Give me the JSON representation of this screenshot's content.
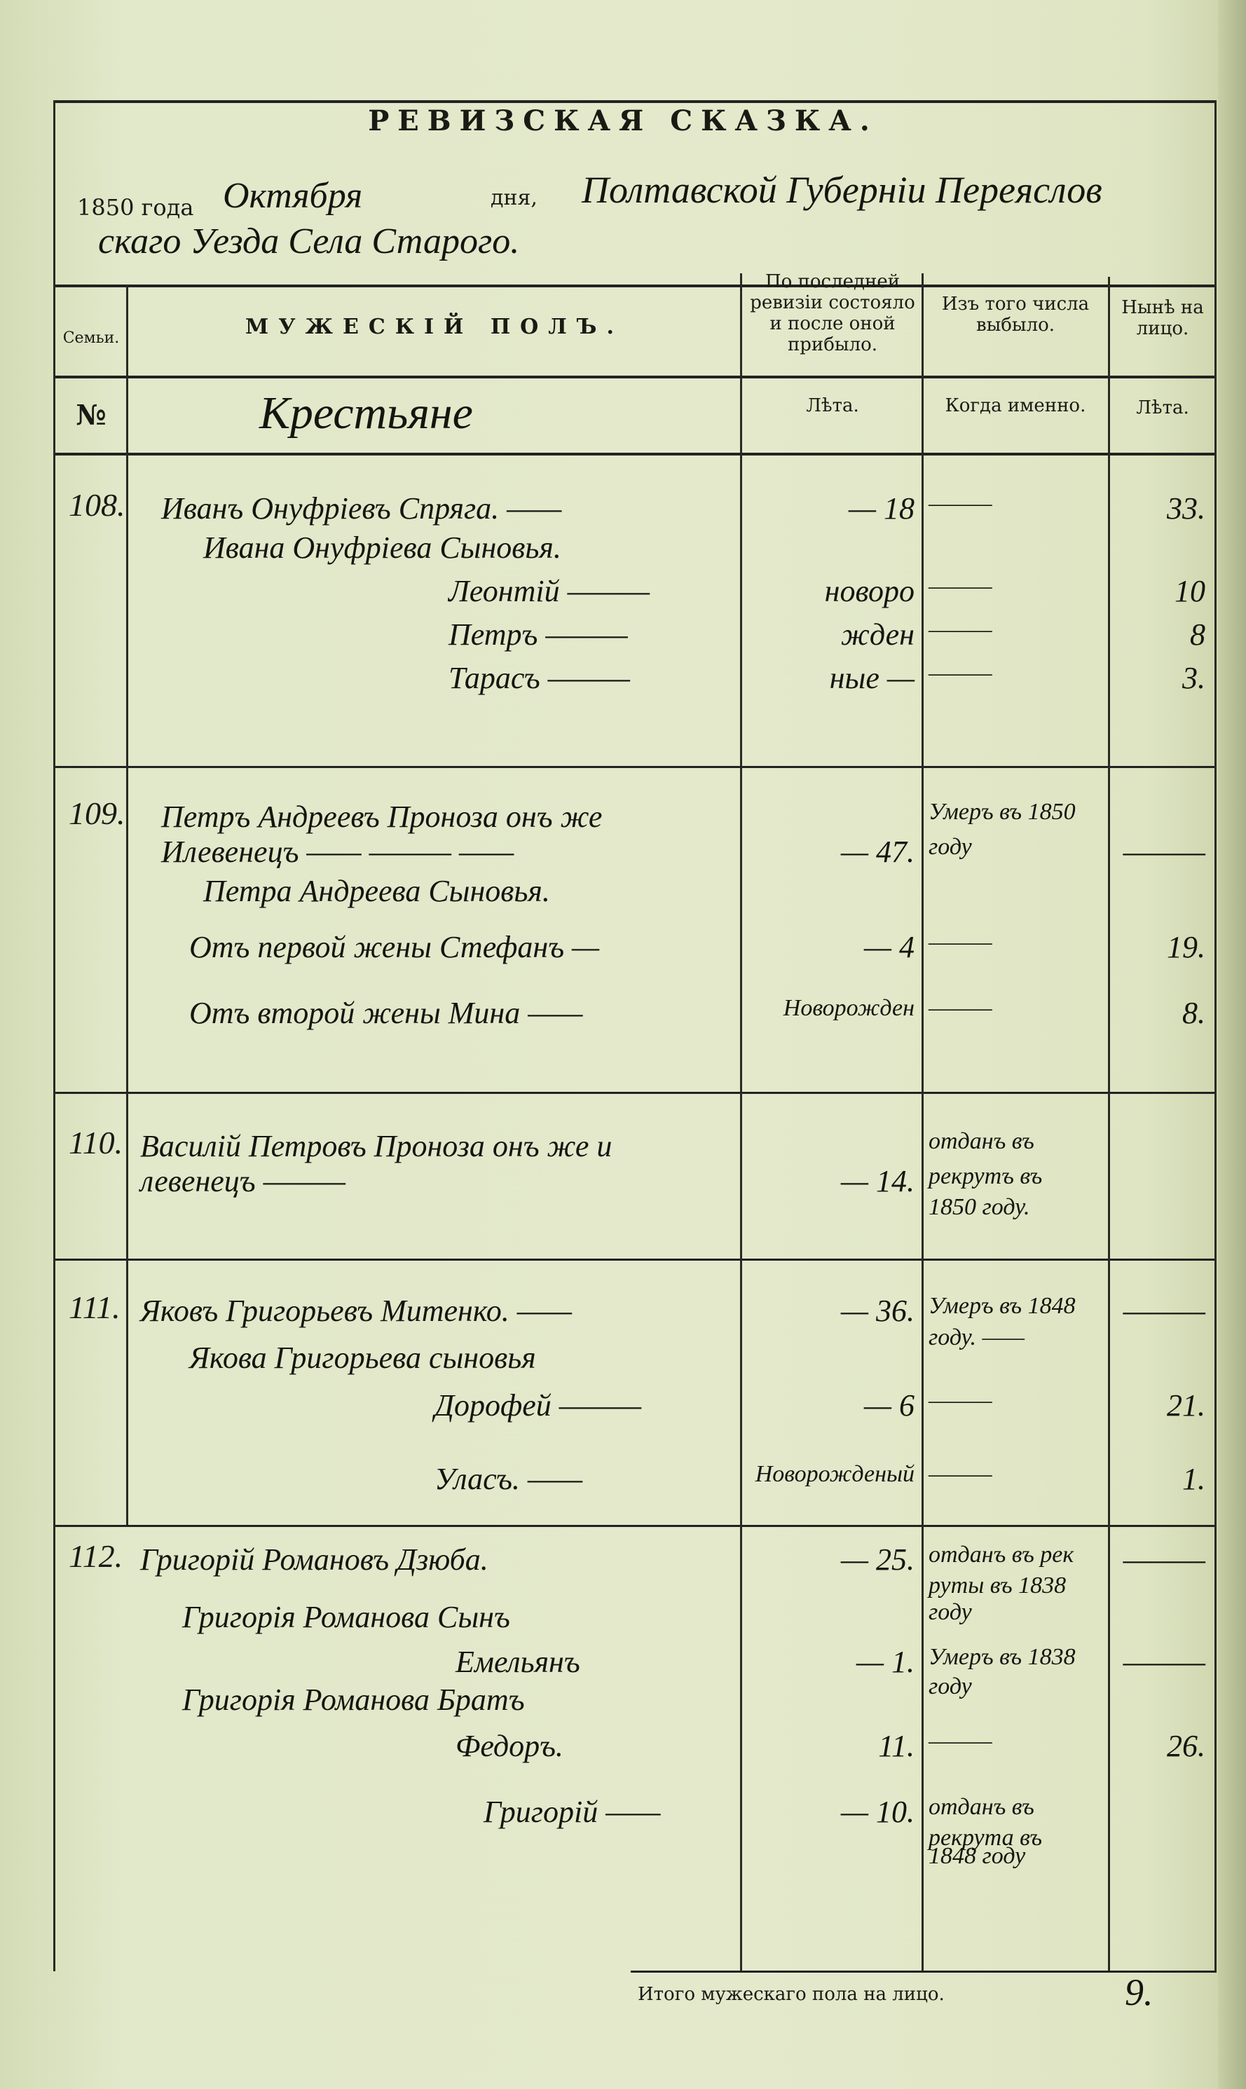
{
  "document": {
    "title": "РЕВИЗСКАЯ СКАЗКА.",
    "date_line": {
      "year_printed": "1850 года",
      "month": "Октября",
      "day_printed": "дня,",
      "place_line1": "Полтавской Губерніи Переяслов",
      "place_line2": "скаго Уезда Села Старого."
    },
    "columns": {
      "family": "Семьи.",
      "male": "МУЖЕСКІЙ ПОЛЪ.",
      "prev_revision": "По последней ревизіи состояло и после оной прибыло.",
      "departed": "Изъ того числа выбыло.",
      "present": "Нынѣ на лицо."
    },
    "subheader": {
      "number": "№",
      "estate": "Крестьяне",
      "years": "Лѣта.",
      "when": "Когда именно.",
      "years_now": "Лѣта."
    },
    "entries": [
      {
        "number": "108.",
        "lines": [
          {
            "name": "Иванъ Онуфріевъ Спряга.  ——",
            "prev": "— 18",
            "when": "———",
            "now": "33."
          },
          {
            "name": "Ивана Онуфріева Сыновья.",
            "prev": "",
            "when": "",
            "now": ""
          },
          {
            "name": "Леонтій ———",
            "prev": "новоро",
            "when": "———",
            "now": "10"
          },
          {
            "name": "Петръ ———",
            "prev": "жден",
            "when": "———",
            "now": "8"
          },
          {
            "name": "Тарасъ ———",
            "prev": "ные —",
            "when": "———",
            "now": "3."
          }
        ]
      },
      {
        "number": "109.",
        "lines": [
          {
            "name": "Петръ Андреевъ Проноза онъ же",
            "prev": "",
            "when": "Умеръ въ 1850",
            "now": ""
          },
          {
            "name": "Илевенецъ —— ——— ——",
            "prev": "— 47.",
            "when": "году",
            "now": "———"
          },
          {
            "name": "Петра Андреева Сыновья.",
            "prev": "",
            "when": "",
            "now": ""
          },
          {
            "name": "Отъ первой жены Стефанъ —",
            "prev": "— 4",
            "when": "———",
            "now": "19."
          },
          {
            "name": "Отъ второй жены Мина ——",
            "prev": "Новорожден",
            "when": "———",
            "now": "8."
          }
        ]
      },
      {
        "number": "110.",
        "lines": [
          {
            "name": "Василій Петровъ Проноза онъ же и",
            "prev": "",
            "when": "отданъ въ",
            "now": ""
          },
          {
            "name": "левенецъ ———",
            "prev": "— 14.",
            "when": "рекрутъ въ",
            "now": ""
          },
          {
            "name": "",
            "prev": "",
            "when": "1850 году.",
            "now": ""
          }
        ]
      },
      {
        "number": "111.",
        "lines": [
          {
            "name": "Яковъ Григорьевъ Митенко.  ——",
            "prev": "— 36.",
            "when": "Умеръ въ 1848",
            "now": "———"
          },
          {
            "name": "",
            "prev": "",
            "when": "году. ——",
            "now": ""
          },
          {
            "name": "Якова Григорьева сыновья",
            "prev": "",
            "when": "",
            "now": ""
          },
          {
            "name": "Дорофей ———",
            "prev": "— 6",
            "when": "———",
            "now": "21."
          },
          {
            "name": "Уласъ. ——",
            "prev": "Новорожденый",
            "when": "———",
            "now": "1."
          }
        ]
      },
      {
        "number": "112.",
        "lines": [
          {
            "name": "Григорій Романовъ Дзюба.",
            "prev": "— 25.",
            "when": "отданъ въ рек",
            "now": "———"
          },
          {
            "name": "",
            "prev": "",
            "when": "руты въ 1838",
            "now": ""
          },
          {
            "name": "Григорія Романова Сынъ",
            "prev": "",
            "when": "году",
            "now": ""
          },
          {
            "name": "Емельянъ",
            "prev": "— 1.",
            "when": "Умеръ въ 1838",
            "now": "———"
          },
          {
            "name": "",
            "prev": "",
            "when": "году",
            "now": ""
          },
          {
            "name": "Григорія Романова Братъ",
            "prev": "",
            "when": "",
            "now": ""
          },
          {
            "name": "Федоръ.",
            "prev": "11.",
            "when": "———",
            "now": "26."
          },
          {
            "name": "Григорій ——",
            "prev": "— 10.",
            "when": "отданъ въ",
            "now": ""
          },
          {
            "name": "",
            "prev": "",
            "when": "рекрута въ",
            "now": ""
          },
          {
            "name": "",
            "prev": "",
            "when": "1848 году",
            "now": ""
          }
        ]
      }
    ],
    "footer": {
      "label": "Итого мужескаго пола на лицо.",
      "total": "9."
    }
  }
}
